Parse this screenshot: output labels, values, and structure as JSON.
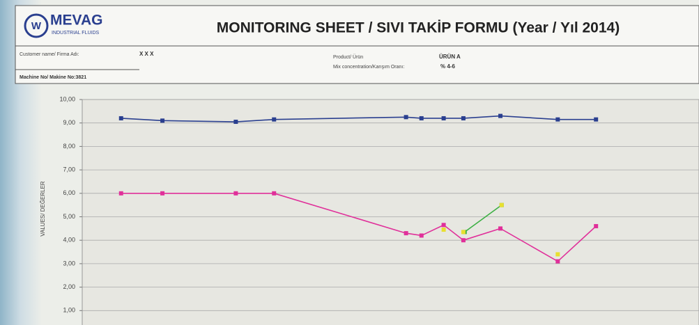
{
  "header": {
    "logo": "MEVAG",
    "logo_sub": "INDUSTRIAL FLUIDS",
    "title": "MONITORING SHEET / SIVI TAKİP FORMU  (Year / Yıl 2014)",
    "customer_label": "Customer name/ Firma Adı:",
    "customer": "X X X",
    "product_label": "Product/ Ürün",
    "product": "ÜRÜN A",
    "mix_label": "Mix concentration/Karışım Oranı:",
    "mix": "% 4-6",
    "machine": "Machine No/ Makine No:3821"
  },
  "chart_data": {
    "type": "line",
    "ylabel": "VALUES/ DEĞERLER",
    "xlim": [
      0,
      100
    ],
    "ylim": [
      0,
      10
    ],
    "yticks": [
      {
        "value": 1,
        "label": "1,00"
      },
      {
        "value": 2,
        "label": "2,00"
      },
      {
        "value": 3,
        "label": "3,00"
      },
      {
        "value": 4,
        "label": "4,00"
      },
      {
        "value": 5,
        "label": "5,00"
      },
      {
        "value": 6,
        "label": "6,00"
      },
      {
        "value": 7,
        "label": "7,00"
      },
      {
        "value": 8,
        "label": "8,00"
      },
      {
        "value": 9,
        "label": "9,00"
      },
      {
        "value": 10,
        "label": "10,00"
      }
    ],
    "grid": true,
    "series": [
      {
        "color": "#2a3f8f",
        "x": [
          6.3,
          13.0,
          24.9,
          31.1,
          52.5,
          55.0,
          58.6,
          61.8,
          67.8,
          77.1,
          83.3
        ],
        "values": [
          9.2,
          9.1,
          9.05,
          9.15,
          9.25,
          9.2,
          9.2,
          9.2,
          9.3,
          9.15,
          9.15
        ]
      },
      {
        "color": "#e0309a",
        "x": [
          6.3,
          13.0,
          24.9,
          31.1,
          52.5,
          55.0,
          58.6,
          61.8,
          67.8,
          77.1,
          83.3
        ],
        "values": [
          6.0,
          6.0,
          6.0,
          6.0,
          4.3,
          4.2,
          4.65,
          4.0,
          4.5,
          3.1,
          4.6
        ]
      },
      {
        "color": "#3cb043",
        "x": [
          62.0,
          68.0
        ],
        "values": [
          4.35,
          5.5
        ]
      },
      {
        "color": "#e8e030",
        "x": [
          58.6,
          61.8,
          68.0,
          77.1
        ],
        "values": [
          4.45,
          4.35,
          5.5,
          3.4
        ],
        "markers_only": true
      }
    ]
  }
}
